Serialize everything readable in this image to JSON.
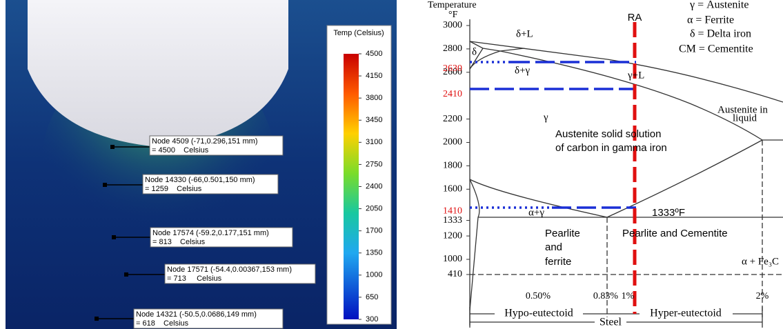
{
  "simulation": {
    "legend_title": "Temp (Celsius)",
    "legend_ticks": [
      4500,
      4150,
      3800,
      3450,
      3100,
      2750,
      2400,
      2050,
      1700,
      1350,
      1000,
      650,
      300
    ],
    "nodes": [
      {
        "label": "Node 4509 (-71,0.296,151 mm)",
        "value": "= 4500    Celsius"
      },
      {
        "label": "Node 14330 (-66,0.501,150 mm)",
        "value": "= 1259    Celsius"
      },
      {
        "label": "Node 17574 (-59.2,0.177,151 mm)",
        "value": "= 813    Celsius"
      },
      {
        "label": "Node 17571 (-54.4,0.00367,153 mm)",
        "value": "= 713     Celsius"
      },
      {
        "label": "Node 14321 (-50.5,0.0686,149 mm)",
        "value": "= 618    Celsius"
      }
    ]
  },
  "phase_diagram": {
    "y_axis_title": "Temperature",
    "y_axis_unit": "°F",
    "yticks": [
      3000,
      2800,
      2600,
      2200,
      2000,
      1800,
      1600,
      1333,
      1200,
      1000,
      410
    ],
    "highlighted_ticks": [
      2630,
      2410,
      1410
    ],
    "key": [
      "γ = Austenite",
      "α = Ferrite",
      "δ = Delta iron",
      "CM = Cementite"
    ],
    "ra_label": "RA",
    "regions": {
      "delta_liquid": "δ+L",
      "delta": "δ",
      "delta_gamma": "δ+γ",
      "gamma_liquid": "γ+L",
      "gamma": "γ",
      "austenite": [
        "Austenite solid solution",
        "of carbon in gamma iron"
      ],
      "austenite_liquid": [
        "Austenite in",
        "liquid"
      ],
      "alpha_gamma": "α+γ",
      "eutectoid": "1333ºF",
      "pearlite_ferrite": [
        "Pearlite",
        "and",
        "ferrite"
      ],
      "pearlite_cementite": "Pearlite and Cementite",
      "alpha_fe3c": "α + Fe₃C"
    },
    "carbon_labels": [
      "0.50%",
      "0.83%",
      "1%",
      "2%"
    ],
    "ranges": {
      "hypo": "Hypo-eutectoid",
      "hyper": "Hyper-eutectoid",
      "steel": "Steel"
    }
  }
}
